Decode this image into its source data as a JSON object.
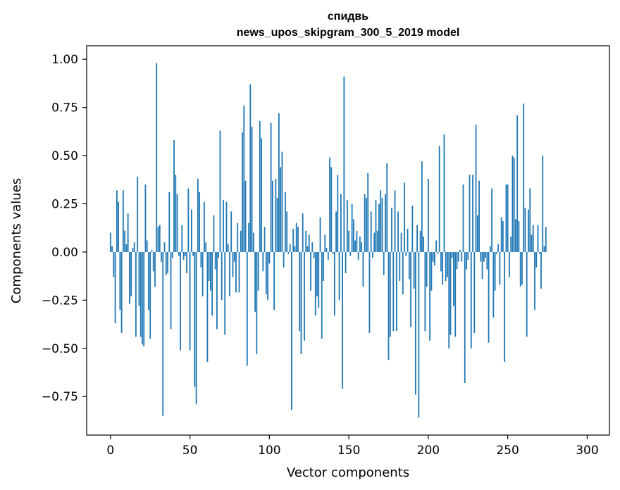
{
  "chart_data": {
    "type": "bar",
    "title": "спидвь",
    "subtitle": "news_upos_skipgram_300_5_2019 model",
    "xlabel": "Vector components",
    "ylabel": "Components values",
    "xlim": [
      -15,
      314
    ],
    "ylim": [
      -0.95,
      1.07
    ],
    "x_ticks": [
      0,
      50,
      100,
      150,
      200,
      250,
      300
    ],
    "y_ticks": [
      -0.75,
      -0.5,
      -0.25,
      0.0,
      0.25,
      0.5,
      0.75,
      1.0
    ],
    "x_tick_labels": [
      "0",
      "50",
      "100",
      "150",
      "200",
      "250",
      "300"
    ],
    "y_tick_labels": [
      "−0.75",
      "−0.50",
      "−0.25",
      "0.00",
      "0.25",
      "0.50",
      "0.75",
      "1.00"
    ],
    "bar_color": "#1f77b4",
    "grid": false,
    "values": [
      0.1,
      0.03,
      -0.13,
      -0.37,
      0.32,
      0.26,
      -0.3,
      -0.42,
      0.32,
      0.11,
      0.04,
      0.2,
      -0.27,
      -0.23,
      0.02,
      0.05,
      -0.44,
      0.39,
      -0.28,
      -0.44,
      -0.48,
      -0.49,
      0.35,
      0.06,
      -0.3,
      -0.45,
      0.01,
      -0.1,
      -0.18,
      0.98,
      0.13,
      0.14,
      -0.05,
      -0.85,
      0.05,
      -0.12,
      -0.11,
      0.31,
      -0.4,
      -0.03,
      0.58,
      0.4,
      0.3,
      -0.02,
      -0.51,
      0.14,
      -0.04,
      -0.02,
      -0.11,
      0.33,
      -0.51,
      0.22,
      -0.02,
      -0.7,
      -0.79,
      0.38,
      0.31,
      -0.08,
      -0.23,
      0.26,
      0.05,
      -0.57,
      -0.15,
      -0.2,
      -0.33,
      0.19,
      -0.09,
      -0.4,
      -0.03,
      0.63,
      -0.25,
      0.27,
      -0.43,
      0.26,
      0.04,
      -0.23,
      0.21,
      -0.13,
      -0.05,
      -0.21,
      0.15,
      -0.21,
      0.11,
      0.62,
      0.76,
      0.37,
      -0.59,
      0.15,
      0.87,
      0.65,
      0.1,
      -0.31,
      -0.53,
      -0.2,
      0.68,
      0.59,
      -0.1,
      0.13,
      -0.22,
      -0.25,
      -0.06,
      0.67,
      0.37,
      -0.3,
      0.38,
      0.28,
      0.72,
      0.44,
      0.52,
      -0.08,
      0.31,
      0.21,
      -0.01,
      0.04,
      -0.82,
      0.12,
      0.03,
      0.15,
      0.13,
      -0.41,
      -0.53,
      0.2,
      -0.46,
      0.11,
      0.03,
      0.09,
      -0.2,
      0.05,
      -0.03,
      -0.33,
      -0.23,
      -0.29,
      0.18,
      -0.45,
      -0.15,
      0.09,
      0.02,
      -0.04,
      0.49,
      0.44,
      -0.01,
      -0.33,
      0.21,
      0.4,
      -0.25,
      0.3,
      -0.71,
      0.91,
      -0.11,
      0.27,
      0.11,
      -0.02,
      0.25,
      0.17,
      0.06,
      0.11,
      -0.04,
      0.08,
      0.05,
      -0.18,
      0.3,
      0.28,
      0.41,
      -0.42,
      0.21,
      -0.03,
      0.1,
      0.27,
      0.11,
      0.25,
      0.32,
      0.28,
      -0.12,
      0.3,
      0.46,
      -0.56,
      -0.44,
      0.23,
      -0.41,
      0.32,
      -0.41,
      0.21,
      -0.15,
      0.1,
      -0.22,
      0.36,
      -0.02,
      0.12,
      -0.14,
      -0.39,
      0.24,
      -0.19,
      -0.74,
      0.14,
      -0.86,
      0.11,
      0.47,
      0.08,
      -0.41,
      -0.18,
      0.38,
      -0.46,
      -0.2,
      -0.05,
      -0.07,
      0.06,
      -0.01,
      0.55,
      -0.1,
      -0.17,
      0.61,
      -0.15,
      -0.13,
      -0.5,
      -0.43,
      -0.03,
      -0.28,
      -0.44,
      -0.09,
      -0.05,
      0.01,
      -0.05,
      0.35,
      -0.68,
      -0.09,
      -0.04,
      0.4,
      -0.5,
      0.4,
      -0.42,
      0.66,
      0.19,
      0.37,
      -0.05,
      -0.14,
      -0.05,
      -0.03,
      -0.09,
      -0.47,
      0.03,
      0.33,
      -0.34,
      -0.2,
      -0.01,
      0.04,
      -0.17,
      0.18,
      0.16,
      -0.57,
      0.35,
      0.35,
      -0.13,
      0.08,
      0.5,
      0.49,
      0.17,
      0.71,
      0.16,
      -0.18,
      -0.17,
      0.77,
      0.23,
      -0.44,
      0.22,
      0.33,
      0.09,
      0.14,
      -0.3,
      -0.08,
      0.14,
      -0.01,
      -0.19,
      0.5,
      0.03,
      0.13
    ]
  }
}
